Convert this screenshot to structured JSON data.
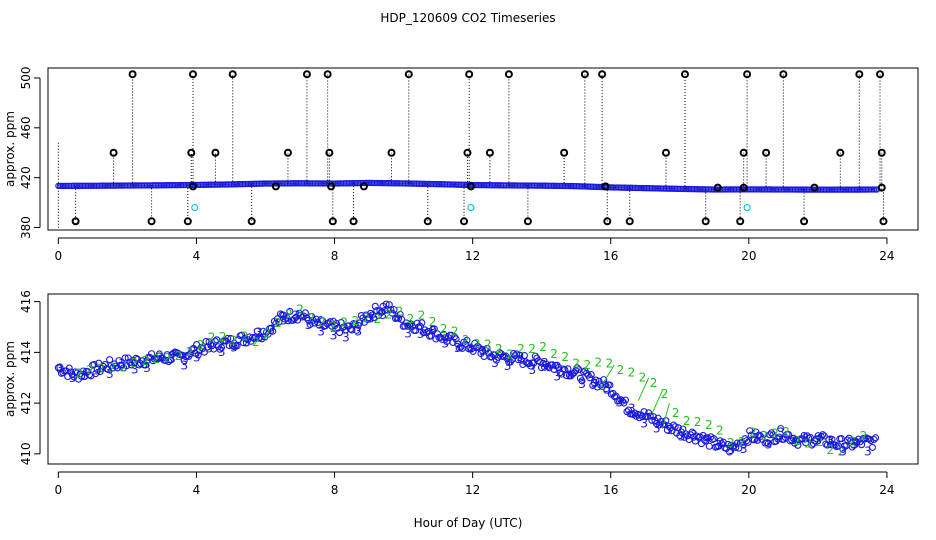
{
  "title": "HDP_120609  CO2 Timeseries",
  "xlabel": "Hour of Day (UTC)",
  "colors": {
    "series3": "#1a1adc",
    "series2": "#22c01e",
    "outlier": "#000000",
    "flag": "#00c8c8"
  },
  "chart_data": [
    {
      "type": "scatter",
      "ylabel": "approx. ppm",
      "xlim": [
        -0.3,
        24.9
      ],
      "ylim": [
        378,
        508
      ],
      "xticks": [
        0,
        4,
        8,
        12,
        16,
        20,
        24
      ],
      "yticks": [
        380,
        420,
        460,
        500
      ],
      "grid": false,
      "baseline": [
        [
          0,
          413.4
        ],
        [
          1,
          413.5
        ],
        [
          2,
          413.7
        ],
        [
          3,
          413.9
        ],
        [
          4,
          414.2
        ],
        [
          5,
          414.6
        ],
        [
          6,
          415.3
        ],
        [
          7,
          415.5
        ],
        [
          8,
          415.3
        ],
        [
          9,
          415.8
        ],
        [
          10,
          415.4
        ],
        [
          11,
          414.8
        ],
        [
          12,
          414.1
        ],
        [
          13,
          413.8
        ],
        [
          14,
          413.6
        ],
        [
          15,
          413.2
        ],
        [
          16,
          412.2
        ],
        [
          17,
          411.6
        ],
        [
          18,
          411.0
        ],
        [
          19,
          410.5
        ],
        [
          20,
          410.6
        ],
        [
          21,
          410.5
        ],
        [
          22,
          410.4
        ],
        [
          23,
          410.4
        ],
        [
          23.7,
          410.5
        ]
      ],
      "outliers_high": [
        [
          2.15,
          503
        ],
        [
          3.9,
          503
        ],
        [
          5.05,
          503
        ],
        [
          7.2,
          503
        ],
        [
          7.8,
          503
        ],
        [
          10.15,
          503
        ],
        [
          11.9,
          503
        ],
        [
          13.05,
          503
        ],
        [
          15.25,
          503
        ],
        [
          15.75,
          503
        ],
        [
          18.15,
          503
        ],
        [
          19.95,
          503
        ],
        [
          21.0,
          503
        ],
        [
          23.2,
          503
        ],
        [
          23.8,
          503
        ]
      ],
      "outliers_mid": [
        [
          1.6,
          440
        ],
        [
          3.85,
          440
        ],
        [
          4.55,
          440
        ],
        [
          6.65,
          440
        ],
        [
          7.85,
          440
        ],
        [
          9.65,
          440
        ],
        [
          11.85,
          440
        ],
        [
          12.5,
          440
        ],
        [
          14.65,
          440
        ],
        [
          17.6,
          440
        ],
        [
          19.85,
          440
        ],
        [
          20.5,
          440
        ],
        [
          22.65,
          440
        ],
        [
          23.85,
          440
        ]
      ],
      "outliers_low": [
        [
          0.5,
          385
        ],
        [
          2.7,
          385
        ],
        [
          3.75,
          385
        ],
        [
          5.6,
          385
        ],
        [
          7.95,
          385
        ],
        [
          8.55,
          385
        ],
        [
          10.7,
          385
        ],
        [
          11.75,
          385
        ],
        [
          13.6,
          385
        ],
        [
          15.9,
          385
        ],
        [
          16.55,
          385
        ],
        [
          18.75,
          385
        ],
        [
          19.75,
          385
        ],
        [
          21.6,
          385
        ],
        [
          23.9,
          385
        ]
      ],
      "near_baseline_marks": [
        [
          3.9,
          413
        ],
        [
          6.3,
          413
        ],
        [
          7.9,
          413
        ],
        [
          8.85,
          413
        ],
        [
          11.95,
          413
        ],
        [
          15.85,
          413
        ],
        [
          19.1,
          412
        ],
        [
          19.85,
          412
        ],
        [
          21.9,
          412
        ],
        [
          23.85,
          412
        ]
      ],
      "flagged": [
        [
          3.95,
          396
        ],
        [
          11.95,
          396
        ],
        [
          19.95,
          396
        ]
      ]
    },
    {
      "type": "scatter",
      "ylabel": "approx. ppm",
      "xlim": [
        -0.3,
        24.9
      ],
      "ylim": [
        409.6,
        416.3
      ],
      "xticks": [
        0,
        4,
        8,
        12,
        16,
        20,
        24
      ],
      "yticks": [
        410,
        412,
        414,
        416
      ],
      "grid": false,
      "series": [
        {
          "label": "3",
          "color": "#1a1adc",
          "values": [
            [
              0,
              413.4
            ],
            [
              0.5,
              413.1
            ],
            [
              1,
              413.3
            ],
            [
              1.5,
              413.5
            ],
            [
              2,
              413.6
            ],
            [
              2.5,
              413.7
            ],
            [
              3,
              413.8
            ],
            [
              3.5,
              413.8
            ],
            [
              4,
              414.1
            ],
            [
              4.5,
              414.3
            ],
            [
              5,
              414.4
            ],
            [
              5.5,
              414.6
            ],
            [
              6,
              414.8
            ],
            [
              6.5,
              415.4
            ],
            [
              7,
              415.5
            ],
            [
              7.5,
              415.1
            ],
            [
              8,
              415.0
            ],
            [
              8.5,
              414.9
            ],
            [
              9,
              415.5
            ],
            [
              9.5,
              415.8
            ],
            [
              10,
              415.2
            ],
            [
              10.5,
              415.0
            ],
            [
              11,
              414.7
            ],
            [
              11.5,
              414.4
            ],
            [
              12,
              414.2
            ],
            [
              12.5,
              413.9
            ],
            [
              13,
              413.8
            ],
            [
              13.5,
              413.7
            ],
            [
              14,
              413.6
            ],
            [
              14.5,
              413.4
            ],
            [
              15,
              413.2
            ],
            [
              15.5,
              412.9
            ],
            [
              16,
              412.6
            ],
            [
              16.5,
              411.8
            ],
            [
              17,
              411.5
            ],
            [
              17.5,
              411.2
            ],
            [
              18,
              410.9
            ],
            [
              18.5,
              410.7
            ],
            [
              19,
              410.4
            ],
            [
              19.5,
              410.2
            ],
            [
              20,
              410.7
            ],
            [
              20.5,
              410.6
            ],
            [
              21,
              410.8
            ],
            [
              21.5,
              410.5
            ],
            [
              22,
              410.6
            ],
            [
              22.5,
              410.4
            ],
            [
              23,
              410.4
            ],
            [
              23.5,
              410.5
            ],
            [
              23.7,
              410.4
            ]
          ]
        },
        {
          "label": "2",
          "color": "#22c01e",
          "values": [
            [
              0.8,
              413.3
            ],
            [
              1.8,
              413.5
            ],
            [
              2.7,
              413.8
            ],
            [
              3.6,
              414.0
            ],
            [
              4.6,
              414.7
            ],
            [
              5.7,
              414.5
            ],
            [
              6.8,
              415.8
            ],
            [
              7.6,
              415.2
            ],
            [
              8.7,
              415.1
            ],
            [
              9.8,
              415.6
            ],
            [
              10.8,
              415.2
            ],
            [
              11.7,
              414.7
            ],
            [
              12.9,
              414.0
            ],
            [
              14.2,
              414.1
            ],
            [
              15.2,
              413.4
            ],
            [
              16.1,
              413.5
            ],
            [
              16.8,
              412.9
            ],
            [
              17.1,
              413.0
            ],
            [
              17.4,
              412.4
            ],
            [
              17.7,
              412.0
            ],
            [
              18.1,
              411.5
            ],
            [
              19.5,
              410.5
            ],
            [
              20.3,
              410.8
            ],
            [
              21.3,
              410.7
            ],
            [
              22.2,
              410.3
            ],
            [
              22.8,
              410.2
            ],
            [
              23.3,
              410.6
            ]
          ]
        }
      ]
    }
  ]
}
